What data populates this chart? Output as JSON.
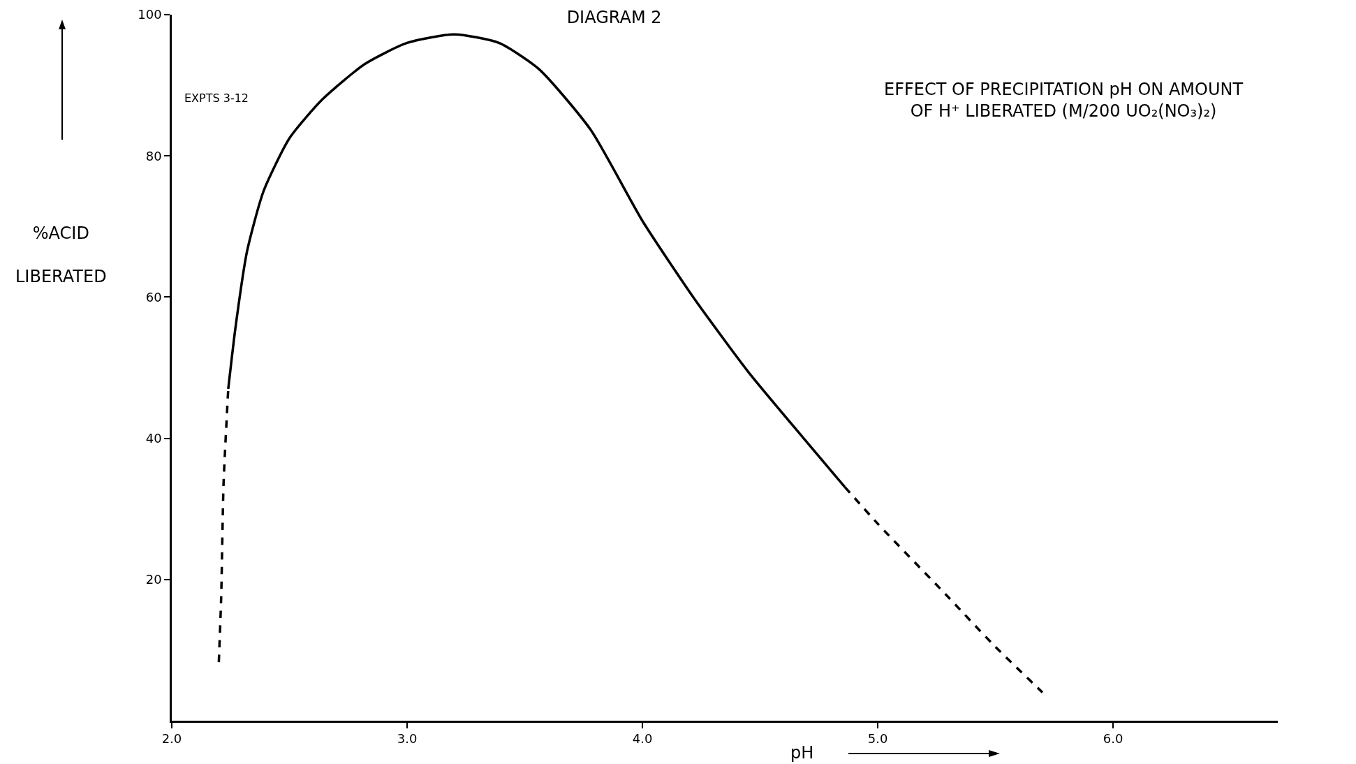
{
  "chart_data": {
    "type": "line",
    "title": "DIAGRAM 2",
    "subtitle": "EFFECT OF PRECIPITATION pH ON AMOUNT OF H⁺ LIBERATED (M/200 UO₂(NO₃)₂)",
    "xlabel": "pH",
    "ylabel": "%ACID LIBERATED",
    "annotations": [
      "EXPTS 3-12"
    ],
    "xlim": [
      2.0,
      6.7
    ],
    "ylim": [
      0,
      100
    ],
    "xticks": [
      {
        "value": 2,
        "label": "2.0"
      },
      {
        "value": 3,
        "label": "3.0"
      },
      {
        "value": 4,
        "label": "4.0"
      },
      {
        "value": 5,
        "label": "5.0"
      },
      {
        "value": 6,
        "label": "6.0"
      }
    ],
    "yticks": [
      20,
      40,
      60,
      80,
      100
    ],
    "series": [
      {
        "color": "#000000",
        "line_style": "dashed",
        "x": [
          2.2,
          2.21,
          2.22,
          2.24
        ],
        "values": [
          8.3,
          17.5,
          33.5,
          47
        ]
      },
      {
        "color": "#000000",
        "line_style": "solid",
        "x": [
          2.24,
          2.27,
          2.32,
          2.39,
          2.5,
          2.64,
          2.82,
          3.0,
          3.2,
          3.39,
          3.56,
          3.78,
          4.0,
          4.22,
          4.45,
          4.68,
          4.86
        ],
        "values": [
          47,
          55.5,
          66.5,
          75,
          82.5,
          88,
          93,
          96,
          97.2,
          96,
          92.3,
          83.7,
          70.8,
          59.8,
          49.4,
          40.2,
          33.1
        ]
      },
      {
        "color": "#000000",
        "line_style": "dashed",
        "x": [
          4.86,
          5.0,
          5.3,
          5.49,
          5.7
        ],
        "values": [
          33.1,
          27.9,
          17.5,
          10.8,
          4.0
        ]
      }
    ]
  }
}
